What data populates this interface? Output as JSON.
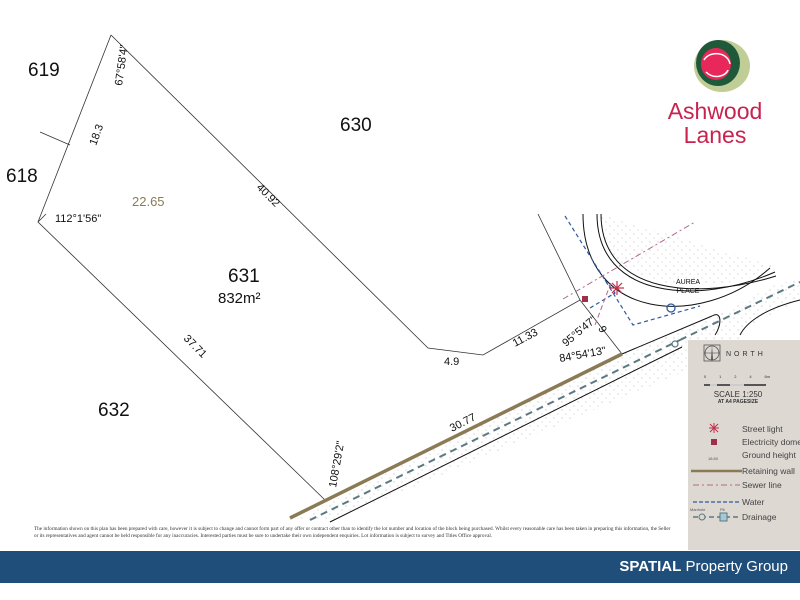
{
  "brand": {
    "name_line1": "Ashwood",
    "name_line2": "Lanes",
    "color": "#c8234f"
  },
  "lots": {
    "l619": "619",
    "l618": "618",
    "l630": "630",
    "l631": "631",
    "l632": "632",
    "area": "832m²"
  },
  "dimensions": {
    "angle_top": "67°58'4\"",
    "side_left": "18.3",
    "angle_left": "112°1'56\"",
    "ground_height": "22.65",
    "side_top": "40.92",
    "side_bottom_left": "37.71",
    "side_4_9": "4.9",
    "side_11_33": "11.33",
    "angle_95": "95°5'47\"",
    "side_9": "9",
    "angle_84": "84°54'13\"",
    "side_front": "30.77",
    "angle_108": "108°29'2\""
  },
  "street": {
    "line1": "AUREA",
    "line2": "PLACE"
  },
  "legend": {
    "north": "NORTH",
    "scale_ticks": [
      "0",
      "1",
      "2",
      "4",
      "6m"
    ],
    "scale": "SCALE 1:250",
    "scale_note": "AT A4 PAGESIZE",
    "items": [
      {
        "label": "Street light",
        "icon": "street-light-icon"
      },
      {
        "label": "Electricity dome",
        "icon": "electricity-dome-icon"
      },
      {
        "label": "Ground height",
        "icon": "ground-height-icon",
        "sample": "18.60"
      },
      {
        "label": "Retaining wall",
        "icon": "retaining-wall-line"
      },
      {
        "label": "Sewer line",
        "icon": "sewer-line"
      },
      {
        "label": "Water",
        "icon": "water-line"
      },
      {
        "label": "Drainage",
        "icon": "drainage-line",
        "sub_labels": [
          "Manhole",
          "Pit"
        ]
      }
    ],
    "colors": {
      "retaining_wall": "#8b7b55",
      "sewer": "#b06a8e",
      "water": "#2c5aa0",
      "drainage": "#5a7a80",
      "street_light": "#c0304a",
      "electricity": "#a0304a"
    }
  },
  "disclaimer": "The information shown on this plan has been prepared with care, however it is subject to change and cannot form part of any offer or contract other than to identify the lot number and location of the block being purchased. Whilst every reasonable care has been taken in preparing this information, the Seller or its representatives and agent cannot be held responsible for any inaccuracies. Interested parties must be sure to undertake their own independent enquiries. Lot information is subject to survey and Titles Office approval.",
  "footer": {
    "brand_bold": "SPATIAL",
    "brand_rest": " Property Group",
    "color": "#1e4e79"
  }
}
